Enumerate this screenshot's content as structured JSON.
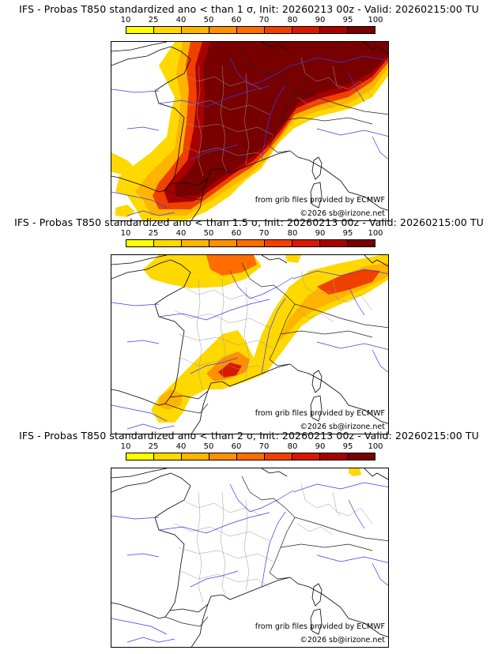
{
  "colorbar": {
    "ticks": [
      "10",
      "25",
      "40",
      "50",
      "60",
      "70",
      "80",
      "90",
      "95",
      "100"
    ],
    "colors": [
      "#ffff00",
      "#ffd800",
      "#ffb400",
      "#ff9000",
      "#ff6c00",
      "#f04000",
      "#d81800",
      "#a80000",
      "#780000"
    ]
  },
  "panels": [
    {
      "title": "IFS - Probas T850  standardized ano < than 1 σ, Init: 20260213 00z - Valid: 20260215:00 TU",
      "credit_source": "from grib files provided by ECMWF",
      "credit_copyright": "©2026 sb@irizone.net"
    },
    {
      "title": "IFS - Probas T850  standardized ano < than 1.5 σ, Init: 20260213 00z - Valid: 20260215:00 TU",
      "credit_source": "from grib files provided by ECMWF",
      "credit_copyright": "©2026 sb@irizone.net"
    },
    {
      "title": "IFS - Probas T850  standardized ano < than 2 σ, Init: 20260213 00z - Valid: 20260215:00 TU",
      "credit_source": "from grib files provided by ECMWF",
      "credit_copyright": "©2026 sb@irizone.net"
    }
  ]
}
